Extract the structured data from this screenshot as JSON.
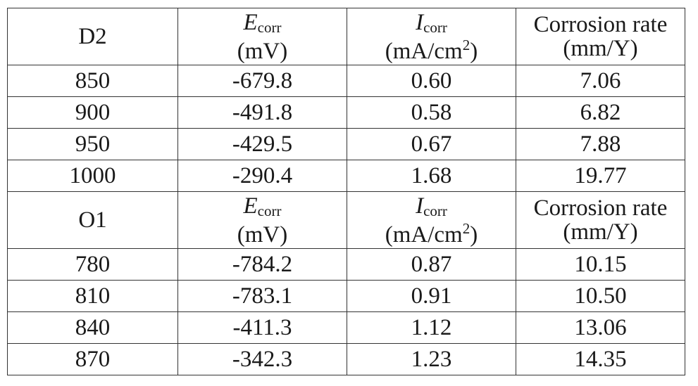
{
  "sections": [
    {
      "label": "D2",
      "headers": {
        "ecorr": {
          "symbol": "E",
          "sub": "corr",
          "unit": "(mV)"
        },
        "icorr": {
          "symbol": "I",
          "sub": "corr",
          "unit_pre": "(mA/cm",
          "unit_sup": "2",
          "unit_post": ")"
        },
        "rate": {
          "line1": "Corrosion rate",
          "line2": "(mm/Y)"
        }
      },
      "rows": [
        {
          "temp": "850",
          "ecorr": "-679.8",
          "icorr": "0.60",
          "rate": "7.06"
        },
        {
          "temp": "900",
          "ecorr": "-491.8",
          "icorr": "0.58",
          "rate": "6.82"
        },
        {
          "temp": "950",
          "ecorr": "-429.5",
          "icorr": "0.67",
          "rate": "7.88"
        },
        {
          "temp": "1000",
          "ecorr": "-290.4",
          "icorr": "1.68",
          "rate": "19.77"
        }
      ]
    },
    {
      "label": "O1",
      "headers": {
        "ecorr": {
          "symbol": "E",
          "sub": "corr",
          "unit": "(mV)"
        },
        "icorr": {
          "symbol": "I",
          "sub": "corr",
          "unit_pre": "(mA/cm",
          "unit_sup": "2",
          "unit_post": ")"
        },
        "rate": {
          "line1": "Corrosion rate",
          "line2": "(mm/Y)"
        }
      },
      "rows": [
        {
          "temp": "780",
          "ecorr": "-784.2",
          "icorr": "0.87",
          "rate": "10.15"
        },
        {
          "temp": "810",
          "ecorr": "-783.1",
          "icorr": "0.91",
          "rate": "10.50"
        },
        {
          "temp": "840",
          "ecorr": "-411.3",
          "icorr": "1.12",
          "rate": "13.06"
        },
        {
          "temp": "870",
          "ecorr": "-342.3",
          "icorr": "1.23",
          "rate": "14.35"
        }
      ]
    }
  ]
}
